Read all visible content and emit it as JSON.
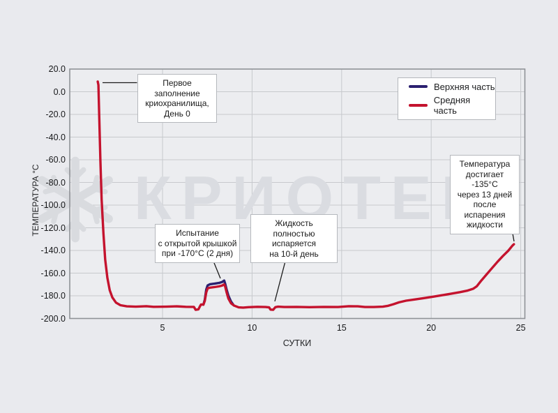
{
  "watermark": {
    "text": "КРИОТЕК",
    "color": "#dadce1",
    "logo": "snowflake-icon"
  },
  "axes": {
    "y_title": "ТЕМПЕРАТУРА °C",
    "x_title": "СУТКИ",
    "y_tick_labels": [
      "20.0",
      "0.0",
      "-20.0",
      "-40.0",
      "-60.0",
      "-80.0",
      "-100.0",
      "-120.0",
      "-140.0",
      "-160.0",
      "-180.0",
      "-200.0"
    ],
    "x_tick_labels": [
      "5",
      "10",
      "15",
      "20",
      "25"
    ]
  },
  "legend": [
    {
      "label": "Верхняя часть",
      "color": "#2b2070"
    },
    {
      "label": "Средняя часть",
      "color": "#c4132e"
    }
  ],
  "annotations": [
    {
      "id": "first-fill",
      "text": "Первое заполнение\nкриохранилища,\nДень 0"
    },
    {
      "id": "lid-test",
      "text": "Испытание\nс открытой крышкой\nпри -170°C (2 дня)"
    },
    {
      "id": "evaporation",
      "text": "Жидкость\nполностью испаряется\nна 10-й день"
    },
    {
      "id": "reaches-135",
      "text": "Температура\nдостигает -135°C\nчерез 13 дней\nпосле испарения\nжидкости"
    }
  ],
  "chart_data": {
    "type": "line",
    "title": "",
    "xlabel": "СУТКИ",
    "ylabel": "ТЕМПЕРАТУРА °C",
    "xlim": [
      -0.18,
      25.23
    ],
    "ylim": [
      -200,
      20
    ],
    "x_tick_values": [
      5,
      10,
      15,
      20,
      25
    ],
    "y_tick_values": [
      20,
      0,
      -20,
      -40,
      -60,
      -80,
      -100,
      -120,
      -140,
      -160,
      -180,
      -200
    ],
    "grid": true,
    "legend_position": "top-right",
    "series": [
      {
        "name": "Верхняя часть",
        "color": "#2b2070",
        "points": [
          [
            7.28,
            -187.8
          ],
          [
            7.36,
            -183.5
          ],
          [
            7.44,
            -174.5
          ],
          [
            7.52,
            -170.8
          ],
          [
            7.65,
            -169.8
          ],
          [
            7.9,
            -169.3
          ],
          [
            8.15,
            -168.7
          ],
          [
            8.32,
            -167.9
          ],
          [
            8.44,
            -166.6
          ],
          [
            8.5,
            -169.5
          ],
          [
            8.58,
            -174.5
          ],
          [
            8.68,
            -180.0
          ],
          [
            8.82,
            -185.0
          ],
          [
            8.95,
            -187.8
          ]
        ]
      },
      {
        "name": "Средняя часть",
        "color": "#c4132e",
        "points": [
          [
            1.38,
            9
          ],
          [
            1.42,
            6
          ],
          [
            1.47,
            -25
          ],
          [
            1.53,
            -60
          ],
          [
            1.6,
            -95
          ],
          [
            1.7,
            -125
          ],
          [
            1.8,
            -148
          ],
          [
            1.92,
            -164
          ],
          [
            2.05,
            -175
          ],
          [
            2.2,
            -181.5
          ],
          [
            2.4,
            -186
          ],
          [
            2.65,
            -188.3
          ],
          [
            3.0,
            -189.3
          ],
          [
            3.5,
            -189.6
          ],
          [
            4.1,
            -189.2
          ],
          [
            4.5,
            -189.7
          ],
          [
            5.2,
            -189.6
          ],
          [
            5.8,
            -189.3
          ],
          [
            6.3,
            -189.7
          ],
          [
            6.75,
            -189.8
          ],
          [
            6.85,
            -192.4
          ],
          [
            7.0,
            -192.0
          ],
          [
            7.08,
            -189.6
          ],
          [
            7.15,
            -187.6
          ],
          [
            7.28,
            -187.8
          ],
          [
            7.36,
            -184.5
          ],
          [
            7.44,
            -177.0
          ],
          [
            7.52,
            -173.5
          ],
          [
            7.65,
            -172.8
          ],
          [
            7.9,
            -172.3
          ],
          [
            8.15,
            -171.7
          ],
          [
            8.32,
            -171.0
          ],
          [
            8.44,
            -169.9
          ],
          [
            8.5,
            -172.0
          ],
          [
            8.58,
            -177.0
          ],
          [
            8.68,
            -182.5
          ],
          [
            8.82,
            -186.5
          ],
          [
            9.0,
            -188.7
          ],
          [
            9.25,
            -190.2
          ],
          [
            9.5,
            -190.4
          ],
          [
            9.8,
            -190.0
          ],
          [
            10.3,
            -189.7
          ],
          [
            10.75,
            -189.9
          ],
          [
            10.95,
            -190.2
          ],
          [
            11.03,
            -192.2
          ],
          [
            11.18,
            -192.3
          ],
          [
            11.3,
            -190.0
          ],
          [
            11.45,
            -189.6
          ],
          [
            11.8,
            -189.9
          ],
          [
            12.5,
            -189.8
          ],
          [
            13.2,
            -190.0
          ],
          [
            14.0,
            -189.8
          ],
          [
            14.8,
            -189.9
          ],
          [
            15.4,
            -189.2
          ],
          [
            15.9,
            -189.3
          ],
          [
            16.3,
            -189.9
          ],
          [
            16.8,
            -189.9
          ],
          [
            17.3,
            -189.6
          ],
          [
            17.6,
            -188.8
          ],
          [
            17.9,
            -187.4
          ],
          [
            18.2,
            -185.8
          ],
          [
            18.6,
            -184.3
          ],
          [
            19.1,
            -183.2
          ],
          [
            19.6,
            -182.0
          ],
          [
            20.1,
            -180.8
          ],
          [
            20.6,
            -179.5
          ],
          [
            21.1,
            -178.2
          ],
          [
            21.6,
            -176.8
          ],
          [
            22.0,
            -175.5
          ],
          [
            22.35,
            -173.8
          ],
          [
            22.55,
            -171.5
          ],
          [
            22.8,
            -166.5
          ],
          [
            23.1,
            -161.0
          ],
          [
            23.4,
            -155.5
          ],
          [
            23.7,
            -150.0
          ],
          [
            24.0,
            -145.0
          ],
          [
            24.3,
            -140.3
          ],
          [
            24.55,
            -135.5
          ],
          [
            24.62,
            -134.5
          ]
        ]
      }
    ],
    "annotation_targets": [
      {
        "label": "Первое заполнение криохранилища, День 0",
        "day": 1.4,
        "temp": 8
      },
      {
        "label": "Испытание с открытой крышкой при -170°C (2 дня)",
        "day": 8.0,
        "temp": -170
      },
      {
        "label": "Жидкость полностью испаряется на 10-й день",
        "day": 11.1,
        "temp": -190
      },
      {
        "label": "Температура достигает -135°C через 13 дней после испарения жидкости",
        "day": 24.6,
        "temp": -135
      }
    ]
  }
}
